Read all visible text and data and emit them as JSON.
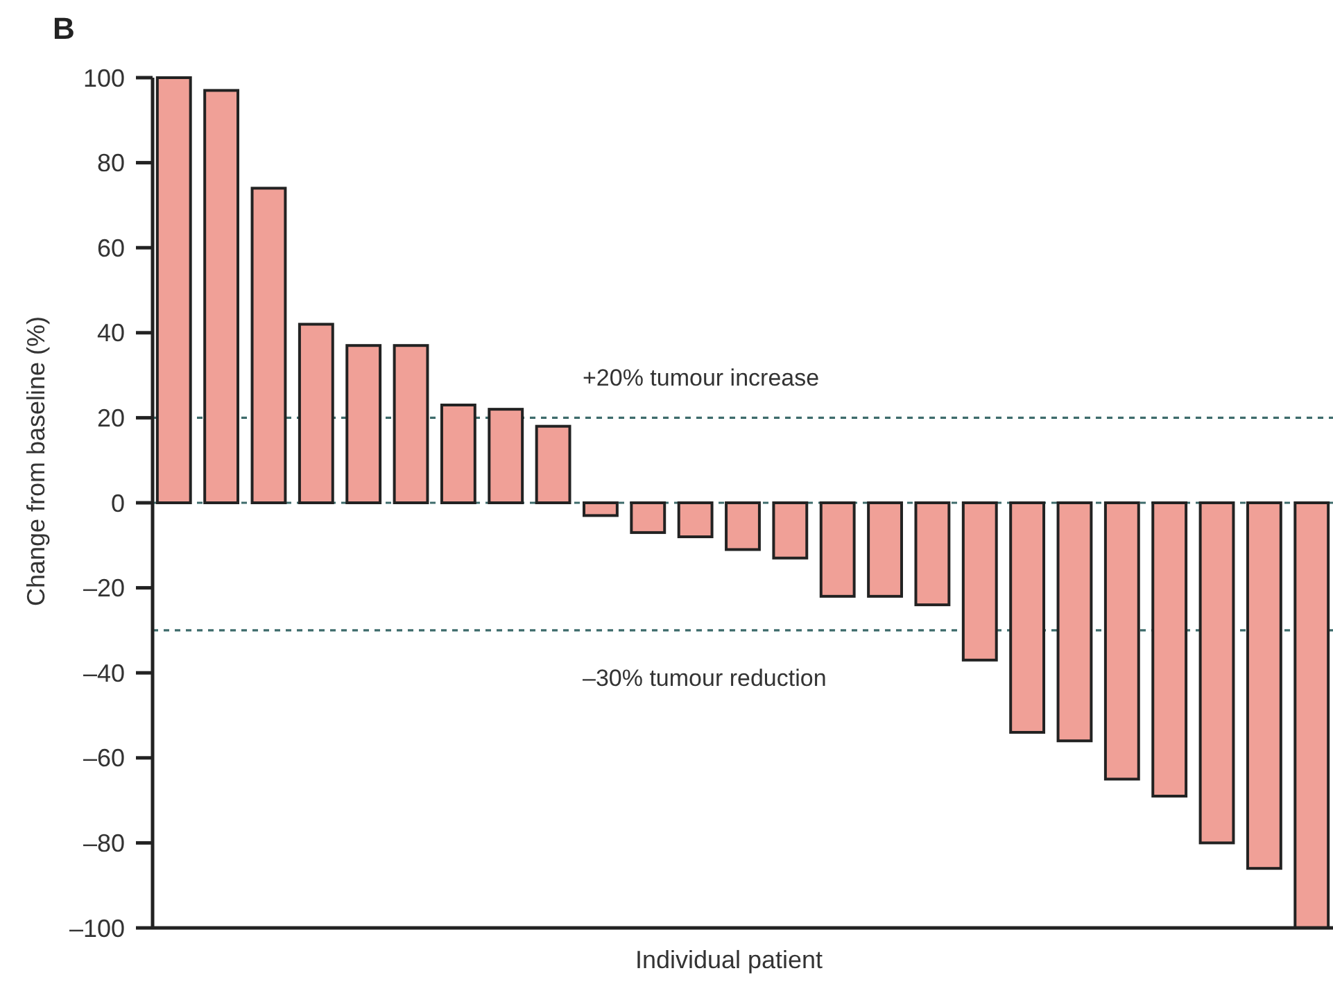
{
  "chart_data": {
    "type": "bar",
    "title": "B",
    "xlabel": "Individual patient",
    "ylabel": "Change from baseline (%)",
    "categories": [
      null,
      null,
      null,
      null,
      null,
      null,
      null,
      null,
      null,
      null,
      null,
      null,
      null,
      null,
      null,
      null,
      null,
      null,
      null,
      null,
      null,
      null,
      null,
      null,
      null
    ],
    "values": [
      100,
      97,
      74,
      42,
      37,
      37,
      23,
      22,
      18,
      -3,
      -7,
      -8,
      -11,
      -13,
      -22,
      -22,
      -24,
      -37,
      -54,
      -56,
      -65,
      -69,
      -80,
      -86,
      -100
    ],
    "color": "#f0a097",
    "ylim": [
      -100,
      100
    ],
    "yticks": [
      {
        "value": -100,
        "label": "–100"
      },
      {
        "value": -80,
        "label": "–80"
      },
      {
        "value": -60,
        "label": "–60"
      },
      {
        "value": -40,
        "label": "–40"
      },
      {
        "value": -20,
        "label": "–20"
      },
      0,
      20,
      40,
      60,
      80,
      100
    ],
    "ref_lines": [
      {
        "axis": "y",
        "value": 20,
        "label": "+20% tumour increase",
        "color": "#3d6b6b",
        "line_style": "dashed"
      },
      {
        "axis": "y",
        "value": 0,
        "color": "#3d6b6b",
        "line_style": "dashed"
      },
      {
        "axis": "y",
        "value": -30,
        "label": "–30% tumour reduction",
        "color": "#3d6b6b",
        "line_style": "dashed"
      }
    ],
    "grid": false
  }
}
